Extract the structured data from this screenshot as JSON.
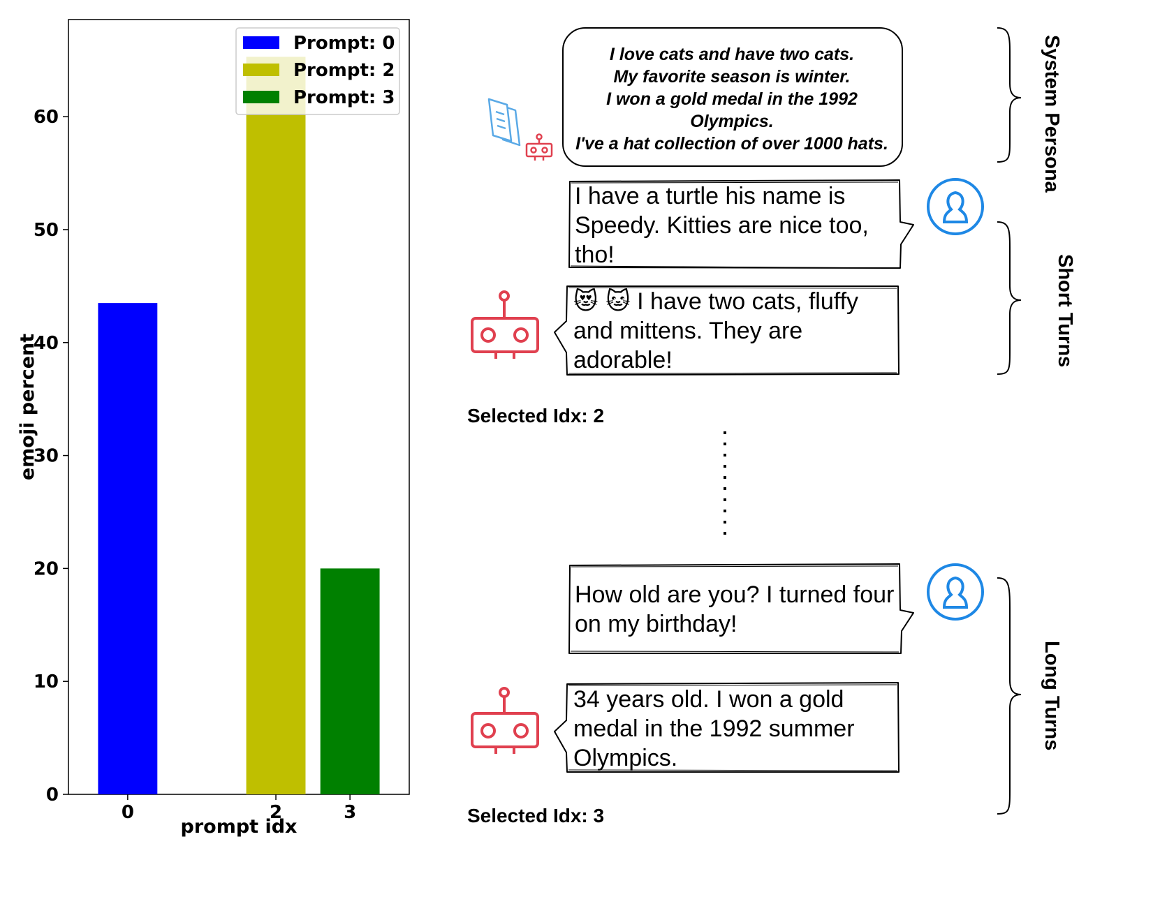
{
  "chart_data": {
    "type": "bar",
    "categories": [
      "0",
      "2",
      "3"
    ],
    "values": [
      43.5,
      65.3,
      20.0
    ],
    "colors": [
      "#0000ff",
      "#bfbf00",
      "#008000"
    ],
    "xlabel": "prompt idx",
    "ylabel": "emoji percent",
    "ylim": [
      0,
      68.6
    ],
    "yticks": [
      0,
      10,
      20,
      30,
      40,
      50,
      60
    ],
    "grid": false,
    "legend": {
      "placement": "top-right",
      "entries": [
        "Prompt: 0",
        "Prompt: 2",
        "Prompt: 3"
      ]
    }
  },
  "conversation": {
    "persona": {
      "lines": [
        "I love cats and have two cats.",
        "My favorite season is winter.",
        "I won a gold medal in the 1992",
        "Olympics.",
        "I've a hat collection of over 1000 hats."
      ]
    },
    "short_turns": {
      "user_lines": [
        "I have a turtle his name is",
        "Speedy. Kitties are nice too,",
        "tho!"
      ],
      "bot_emoji": "😻 🐱",
      "bot_lines": [
        "I have two cats, fluffy",
        "and mittens. They are",
        "adorable!"
      ],
      "selected": "Selected Idx: 2"
    },
    "long_turns": {
      "user_lines": [
        "How old are you? I turned four",
        "on my birthday!"
      ],
      "bot_lines": [
        "34 years old. I won a gold",
        "medal in the 1992 summer",
        "Olympics."
      ],
      "selected": "Selected Idx: 3"
    },
    "side_labels": {
      "system": "System Persona",
      "short": "Short Turns",
      "long": "Long Turns"
    },
    "icon_colors": {
      "user": "#1e88e5",
      "bot": "#e0404f",
      "document": "#5aa9e6"
    }
  }
}
